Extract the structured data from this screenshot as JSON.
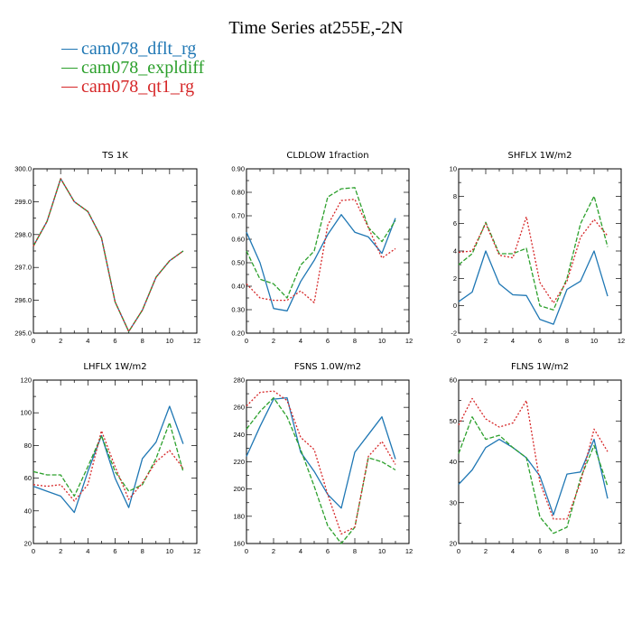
{
  "figure": {
    "title": "Time Series at255E,-2N",
    "legend": [
      {
        "name": "cam078_dflt_rg",
        "color": "#1f77b4"
      },
      {
        "name": "cam078_expldiff",
        "color": "#2ca02c"
      },
      {
        "name": "cam078_qt1_rg",
        "color": "#d62728"
      }
    ]
  },
  "chart_data": [
    {
      "type": "line",
      "title": "TS   1K",
      "xlim": [
        0,
        12
      ],
      "ylim": [
        295.0,
        300.0
      ],
      "xticks": [
        "0",
        "2",
        "4",
        "6",
        "8",
        "10",
        "12"
      ],
      "yticks": [
        "295.0",
        "296.0",
        "297.0",
        "298.0",
        "299.0",
        "300.0"
      ],
      "x": [
        0,
        1,
        2,
        3,
        4,
        5,
        6,
        7,
        8,
        9,
        10,
        11
      ],
      "series": [
        {
          "name": "cam078_dflt_rg",
          "values": [
            297.65,
            298.4,
            299.7,
            299.0,
            298.7,
            297.9,
            295.95,
            295.05,
            295.7,
            296.7,
            297.2,
            297.5
          ]
        },
        {
          "name": "cam078_expldiff",
          "values": [
            297.65,
            298.4,
            299.7,
            299.0,
            298.7,
            297.9,
            295.95,
            295.05,
            295.7,
            296.7,
            297.2,
            297.5
          ]
        },
        {
          "name": "cam078_qt1_rg",
          "values": [
            297.65,
            298.4,
            299.7,
            299.0,
            298.7,
            297.9,
            295.95,
            295.05,
            295.7,
            296.7,
            297.2,
            297.5
          ]
        }
      ]
    },
    {
      "type": "line",
      "title": "CLDLOW   1fraction",
      "xlim": [
        0,
        12
      ],
      "ylim": [
        0.2,
        0.9
      ],
      "xticks": [
        "0",
        "2",
        "4",
        "6",
        "8",
        "10",
        "12"
      ],
      "yticks": [
        "0.20",
        "0.30",
        "0.40",
        "0.50",
        "0.60",
        "0.70",
        "0.80",
        "0.90"
      ],
      "x": [
        0,
        1,
        2,
        3,
        4,
        5,
        6,
        7,
        8,
        9,
        10,
        11
      ],
      "series": [
        {
          "name": "cam078_dflt_rg",
          "values": [
            0.63,
            0.5,
            0.305,
            0.295,
            0.42,
            0.51,
            0.62,
            0.705,
            0.63,
            0.61,
            0.54,
            0.69
          ]
        },
        {
          "name": "cam078_expldiff",
          "values": [
            0.55,
            0.43,
            0.41,
            0.35,
            0.49,
            0.55,
            0.78,
            0.815,
            0.82,
            0.65,
            0.59,
            0.68
          ]
        },
        {
          "name": "cam078_qt1_rg",
          "values": [
            0.41,
            0.35,
            0.34,
            0.34,
            0.38,
            0.33,
            0.66,
            0.765,
            0.77,
            0.65,
            0.52,
            0.56
          ]
        }
      ]
    },
    {
      "type": "line",
      "title": "SHFLX   1W/m2",
      "xlim": [
        0,
        12
      ],
      "ylim": [
        -2,
        10
      ],
      "xticks": [
        "0",
        "2",
        "4",
        "6",
        "8",
        "10",
        "12"
      ],
      "yticks": [
        "-2",
        "0",
        "2",
        "4",
        "6",
        "8",
        "10"
      ],
      "x": [
        0,
        1,
        2,
        3,
        4,
        5,
        6,
        7,
        8,
        9,
        10,
        11
      ],
      "series": [
        {
          "name": "cam078_dflt_rg",
          "values": [
            0.3,
            1.0,
            4.0,
            1.6,
            0.8,
            0.75,
            -1.0,
            -1.35,
            1.2,
            1.8,
            4.0,
            0.7
          ]
        },
        {
          "name": "cam078_expldiff",
          "values": [
            3.0,
            3.8,
            6.1,
            3.8,
            3.8,
            4.2,
            0.0,
            -0.3,
            2.0,
            6.0,
            8.0,
            4.3
          ]
        },
        {
          "name": "cam078_qt1_rg",
          "values": [
            3.9,
            4.0,
            6.0,
            3.7,
            3.5,
            6.5,
            1.7,
            0.2,
            1.8,
            5.0,
            6.3,
            5.1
          ]
        }
      ]
    },
    {
      "type": "line",
      "title": "LHFLX   1W/m2",
      "xlim": [
        0,
        12
      ],
      "ylim": [
        20,
        120
      ],
      "xticks": [
        "0",
        "2",
        "4",
        "6",
        "8",
        "10",
        "12"
      ],
      "yticks": [
        "20",
        "40",
        "60",
        "80",
        "100",
        "120"
      ],
      "x": [
        0,
        1,
        2,
        3,
        4,
        5,
        6,
        7,
        8,
        9,
        10,
        11
      ],
      "series": [
        {
          "name": "cam078_dflt_rg",
          "values": [
            55,
            52,
            49,
            39,
            64,
            86,
            60,
            42,
            72,
            82,
            104,
            81
          ]
        },
        {
          "name": "cam078_expldiff",
          "values": [
            64,
            62,
            62,
            49,
            67,
            86,
            64,
            52,
            56,
            72,
            94,
            64
          ]
        },
        {
          "name": "cam078_qt1_rg",
          "values": [
            56,
            55,
            56,
            46,
            56,
            89,
            67,
            47,
            57,
            70,
            77,
            66
          ]
        }
      ]
    },
    {
      "type": "line",
      "title": "FSNS   1.0W/m2",
      "xlim": [
        0,
        12
      ],
      "ylim": [
        160,
        280
      ],
      "xticks": [
        "0",
        "2",
        "4",
        "6",
        "8",
        "10",
        "12"
      ],
      "yticks": [
        "160",
        "180",
        "200",
        "220",
        "240",
        "260",
        "280"
      ],
      "x": [
        0,
        1,
        2,
        3,
        4,
        5,
        6,
        7,
        8,
        9,
        10,
        11
      ],
      "series": [
        {
          "name": "cam078_dflt_rg",
          "values": [
            224,
            246,
            266,
            267,
            227,
            213,
            196,
            186,
            227,
            240,
            253,
            222
          ]
        },
        {
          "name": "cam078_expldiff",
          "values": [
            244,
            257,
            267,
            253,
            229,
            202,
            173,
            160,
            172,
            223,
            220,
            214
          ]
        },
        {
          "name": "cam078_qt1_rg",
          "values": [
            261,
            271,
            272,
            265,
            238,
            229,
            196,
            167,
            172,
            224,
            235,
            218
          ]
        }
      ]
    },
    {
      "type": "line",
      "title": "FLNS   1W/m2",
      "xlim": [
        0,
        12
      ],
      "ylim": [
        20,
        60
      ],
      "xticks": [
        "0",
        "2",
        "4",
        "6",
        "8",
        "10",
        "12"
      ],
      "yticks": [
        "20",
        "30",
        "40",
        "50",
        "60"
      ],
      "x": [
        0,
        1,
        2,
        3,
        4,
        5,
        6,
        7,
        8,
        9,
        10,
        11
      ],
      "series": [
        {
          "name": "cam078_dflt_rg",
          "values": [
            34.5,
            38,
            43.5,
            45.5,
            43.5,
            41,
            36.5,
            27,
            37,
            37.5,
            45.5,
            31
          ]
        },
        {
          "name": "cam078_expldiff",
          "values": [
            42,
            51,
            45.5,
            46.5,
            43.5,
            41,
            26.5,
            22.5,
            24,
            36,
            44,
            34
          ]
        },
        {
          "name": "cam078_qt1_rg",
          "values": [
            49,
            55.5,
            50.5,
            48.5,
            49.5,
            55,
            35,
            26,
            26,
            35,
            48,
            42.5
          ]
        }
      ]
    }
  ]
}
